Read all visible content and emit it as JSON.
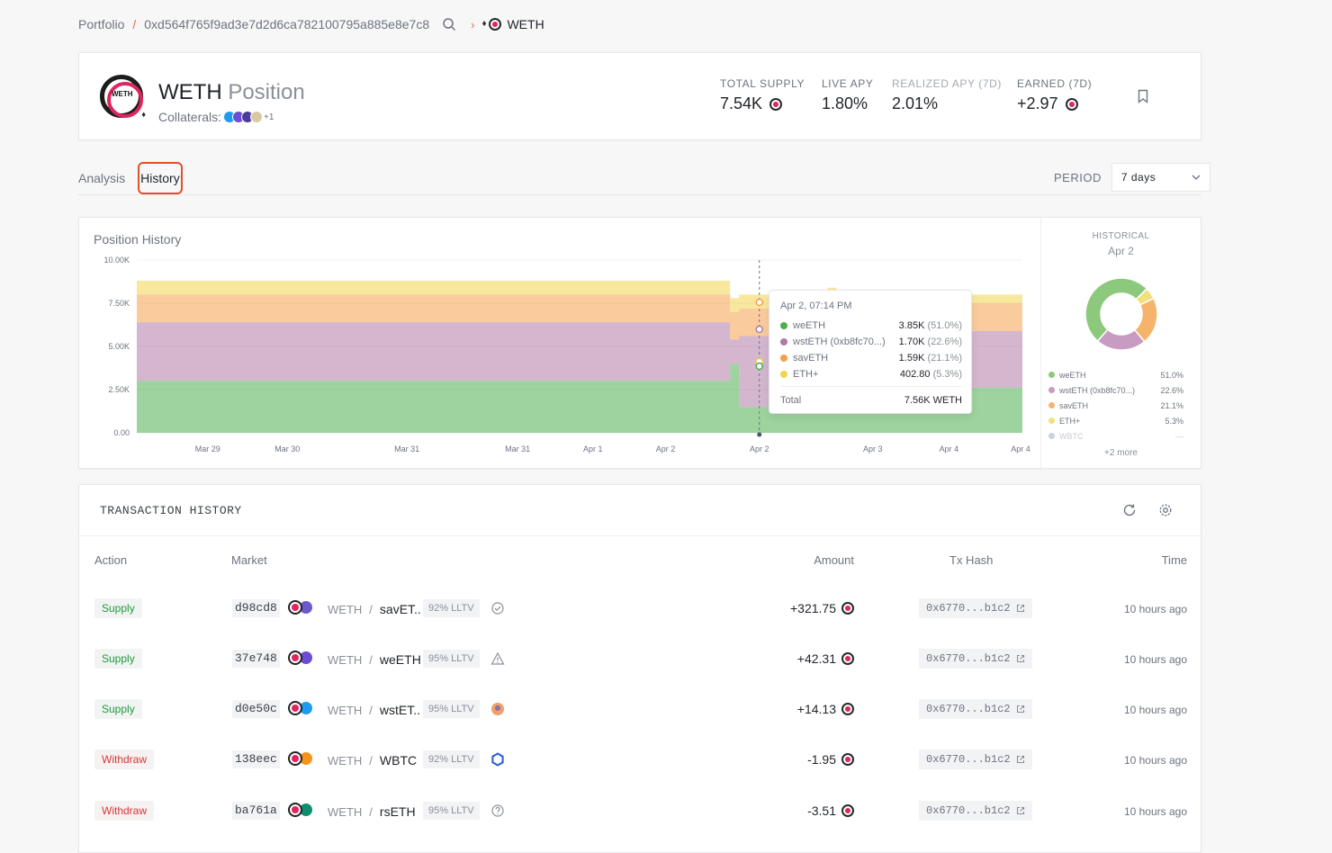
{
  "breadcrumb": {
    "root": "Portfolio",
    "separator": "/",
    "address": "0xd564f765f9ad3e7d2d6ca782100795a885e8e7c8",
    "token": "WETH"
  },
  "position": {
    "title": "WETH",
    "subtitle": "Position",
    "logo_text": "WETH",
    "collaterals_label": "Collaterals:",
    "collaterals_more": "+1",
    "stats": [
      {
        "label": "TOTAL SUPPLY",
        "value": "7.54K"
      },
      {
        "label": "LIVE APY",
        "value": "1.80%"
      },
      {
        "label": "REALIZED APY (7D)",
        "value": "2.01%"
      },
      {
        "label": "EARNED (7D)",
        "value": "+2.97"
      }
    ]
  },
  "tabs": [
    {
      "label": "Analysis",
      "active": false
    },
    {
      "label": "History",
      "active": true
    }
  ],
  "period": {
    "label": "PERIOD",
    "value": "7 days"
  },
  "chart_data": {
    "type": "area",
    "stacked": true,
    "title": "Position History",
    "ylim": [
      0,
      10000
    ],
    "y_ticks": [
      "0.00",
      "2.50K",
      "5.00K",
      "7.50K",
      "10.00K"
    ],
    "x_ticks": [
      "Mar 29",
      "Mar 30",
      "Mar 31",
      "Mar 31",
      "Apr 1",
      "Apr 2",
      "Apr 2",
      "Apr 3",
      "Apr 4",
      "Apr 4"
    ],
    "x": [
      0,
      0.31,
      0.33,
      0.34,
      0.57,
      0.59,
      0.6,
      0.64,
      0.66,
      0.67,
      0.68,
      0.72,
      0.74,
      0.77,
      0.78,
      0.79,
      0.8,
      0.84,
      0.85,
      0.86,
      0.88,
      0.91,
      0.94,
      0.96,
      1.0
    ],
    "series": [
      {
        "name": "weETH",
        "color": "#4caf50",
        "values": [
          3000,
          3000,
          3000,
          3000,
          3000,
          3000,
          3000,
          3000,
          3000,
          4000,
          1500,
          3900,
          2000,
          4400,
          2500,
          4200,
          4000,
          4000,
          4000,
          4000,
          4000,
          4000,
          2600,
          2600,
          2600
        ]
      },
      {
        "name": "wstETH (0xb8fc70...)",
        "color": "#b07aa8",
        "values": [
          3400,
          3400,
          3400,
          3400,
          3400,
          3400,
          3400,
          3400,
          3400,
          1400,
          4100,
          1400,
          3600,
          1000,
          3500,
          1200,
          1300,
          1300,
          1900,
          1900,
          1900,
          1900,
          3300,
          3300,
          3300
        ]
      },
      {
        "name": "savETH",
        "color": "#f5a04a",
        "values": [
          1600,
          1600,
          1600,
          1600,
          1600,
          1600,
          1600,
          1600,
          1600,
          1600,
          1600,
          1600,
          1600,
          1600,
          1600,
          1600,
          1600,
          1600,
          1600,
          1600,
          1600,
          1600,
          1600,
          1600,
          1100
        ]
      },
      {
        "name": "ETH+",
        "color": "#f2d54e",
        "values": [
          800,
          800,
          800,
          800,
          800,
          800,
          800,
          800,
          800,
          800,
          800,
          800,
          800,
          800,
          800,
          800,
          300,
          300,
          300,
          300,
          300,
          300,
          500,
          500,
          500
        ]
      }
    ],
    "tooltip": {
      "title": "Apr 2, 07:14 PM",
      "rows": [
        {
          "name": "weETH",
          "value": "3.85K",
          "pct": "(51.0%)",
          "color": "#4caf50"
        },
        {
          "name": "wstETH (0xb8fc70...)",
          "value": "1.70K",
          "pct": "(22.6%)",
          "color": "#b07aa8"
        },
        {
          "name": "savETH",
          "value": "1.59K",
          "pct": "(21.1%)",
          "color": "#f5a04a"
        },
        {
          "name": "ETH+",
          "value": "402.80",
          "pct": "(5.3%)",
          "color": "#f2d54e"
        }
      ],
      "total_label": "Total",
      "total_value": "7.56K WETH"
    },
    "historical": {
      "label": "HISTORICAL",
      "date": "Apr 2",
      "slices": [
        {
          "name": "weETH",
          "value": 51.0,
          "pct": "51.0%",
          "color": "#8cc97c"
        },
        {
          "name": "wstETH (0xb8fc70...)",
          "value": 22.6,
          "pct": "22.6%",
          "color": "#c79bc2"
        },
        {
          "name": "savETH",
          "value": 21.1,
          "pct": "21.1%",
          "color": "#f5b36b"
        },
        {
          "name": "ETH+",
          "value": 5.3,
          "pct": "5.3%",
          "color": "#f2e07f"
        },
        {
          "name": "WBTC",
          "value": 0,
          "pct": "—",
          "color": "#c9d3e0"
        }
      ],
      "more": "+2 more"
    }
  },
  "transactions": {
    "title": "TRANSACTION HISTORY",
    "columns": [
      "Action",
      "Market",
      "Amount",
      "Tx Hash",
      "Time"
    ],
    "loan_token": "WETH",
    "rows": [
      {
        "action": "Supply",
        "type": "supply",
        "market_id": "d98cd8",
        "collateral": "savET..",
        "lltv": "92% LLTV",
        "oracle": "check",
        "coll_color": "#6a5acd",
        "amount": "+321.75",
        "tx_hash": "0x6770...b1c2",
        "time": "10 hours ago"
      },
      {
        "action": "Supply",
        "type": "supply",
        "market_id": "37e748",
        "collateral": "weETH",
        "lltv": "95% LLTV",
        "oracle": "warning",
        "coll_color": "#6b4cd6",
        "amount": "+42.31",
        "tx_hash": "0x6770...b1c2",
        "time": "10 hours ago"
      },
      {
        "action": "Supply",
        "type": "supply",
        "market_id": "d0e50c",
        "collateral": "wstET..",
        "lltv": "95% LLTV",
        "oracle": "avatar",
        "coll_color": "#1e9cf0",
        "amount": "+14.13",
        "tx_hash": "0x6770...b1c2",
        "time": "10 hours ago"
      },
      {
        "action": "Withdraw",
        "type": "withdraw",
        "market_id": "138eec",
        "collateral": "WBTC",
        "lltv": "92% LLTV",
        "oracle": "chainlink",
        "coll_color": "#f7931a",
        "amount": "-1.95",
        "tx_hash": "0x6770...b1c2",
        "time": "10 hours ago"
      },
      {
        "action": "Withdraw",
        "type": "withdraw",
        "market_id": "ba761a",
        "collateral": "rsETH",
        "lltv": "95% LLTV",
        "oracle": "question",
        "coll_color": "#0f8f6e",
        "amount": "-3.51",
        "tx_hash": "0x6770...b1c2",
        "time": "10 hours ago"
      }
    ]
  }
}
